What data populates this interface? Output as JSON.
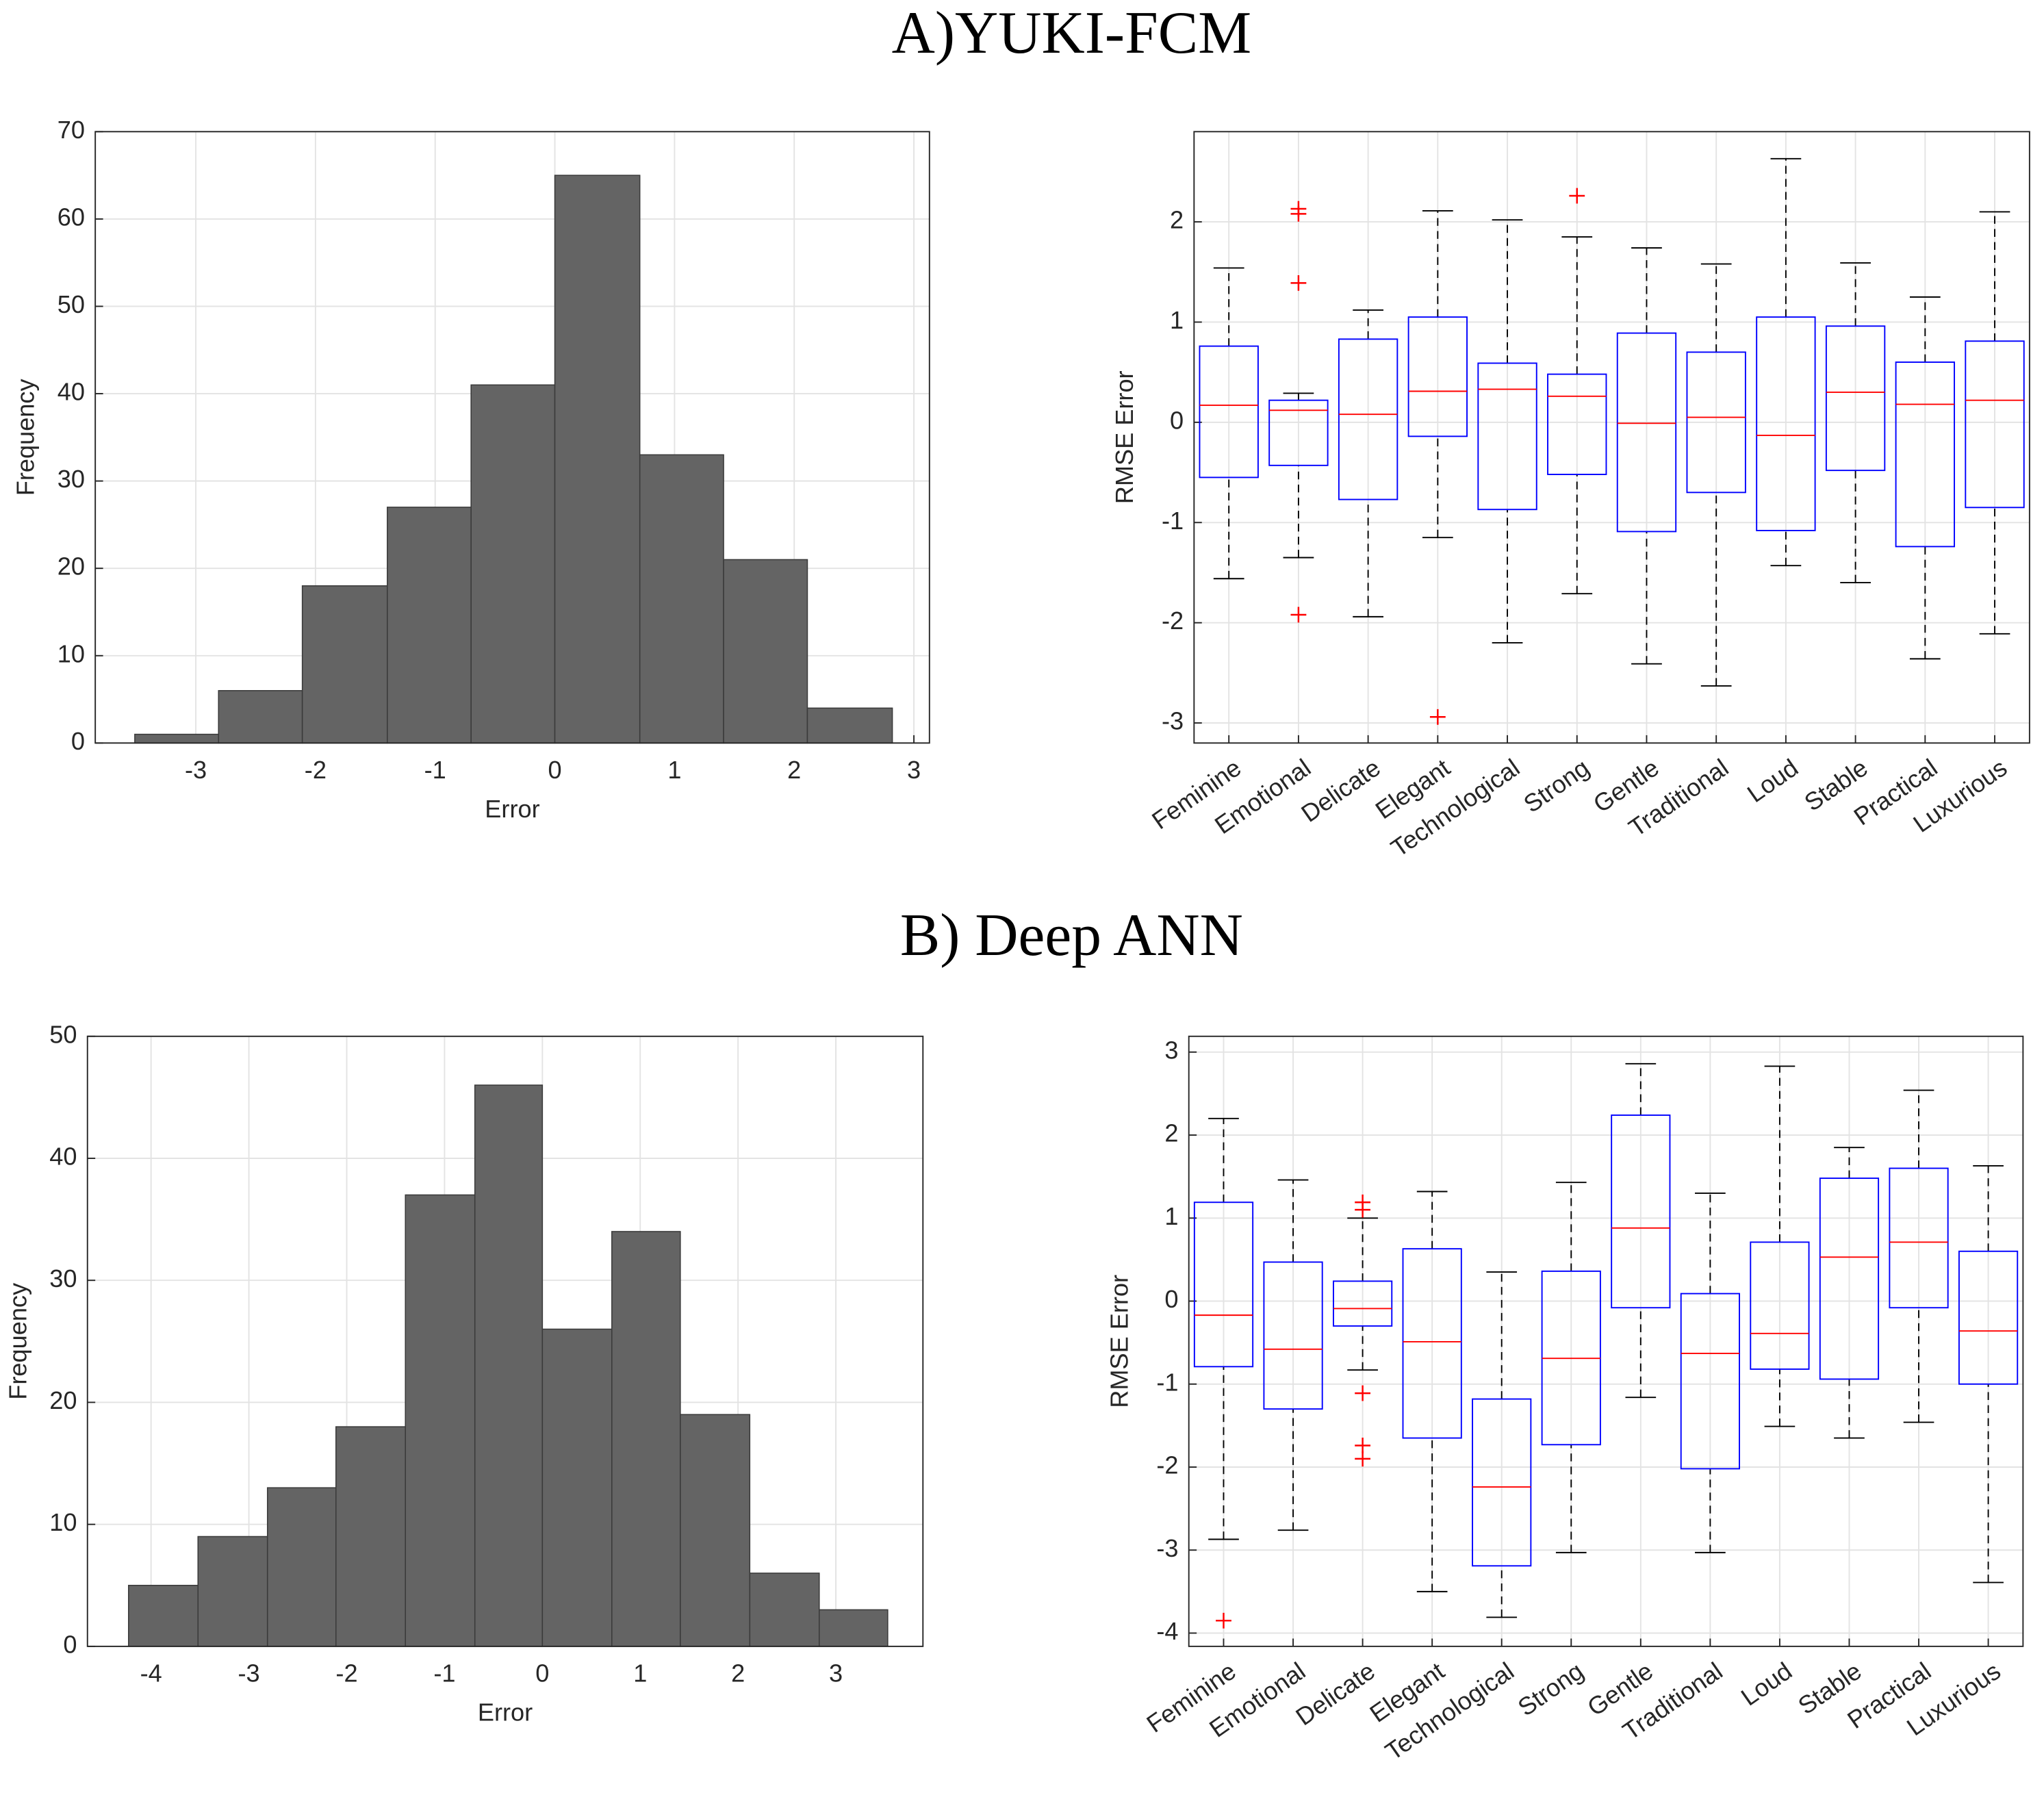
{
  "headings": [
    "A)YUKI-FCM",
    "B) Deep ANN"
  ],
  "chart_data": [
    {
      "type": "histogram",
      "x_label": "Error",
      "y_label": "Frequency",
      "color": "#646464",
      "grid": true,
      "bins": [
        -3.51,
        -2.81,
        -2.11,
        -1.4,
        -0.7,
        0.0,
        0.71,
        1.41,
        2.11,
        2.82
      ],
      "values": [
        1,
        6,
        18,
        27,
        41,
        65,
        33,
        21,
        4
      ],
      "xlim": [
        -3.84,
        3.13
      ],
      "xticks": [
        -3,
        -2,
        -1,
        0,
        1,
        2,
        3
      ],
      "ylim": [
        0,
        70
      ],
      "yticks": [
        0,
        10,
        20,
        30,
        40,
        50,
        60,
        70
      ]
    },
    {
      "type": "box",
      "y_label": "RMSE Error",
      "box_color": "#0000ff",
      "median_color": "#ff0000",
      "whisker_color": "#000000",
      "outlier_color": "#ff0000",
      "grid": true,
      "categories": [
        "Feminine",
        "Emotional",
        "Delicate",
        "Elegant",
        "Technological",
        "Strong",
        "Gentle",
        "Traditional",
        "Loud",
        "Stable",
        "Practical",
        "Luxurious"
      ],
      "boxes": [
        {
          "low": -1.56,
          "q1": -0.55,
          "median": 0.17,
          "q3": 0.76,
          "high": 1.54,
          "outliers": []
        },
        {
          "low": -1.35,
          "q1": -0.43,
          "median": 0.12,
          "q3": 0.22,
          "high": 0.29,
          "outliers": [
            2.13,
            2.08,
            1.39,
            -1.92
          ]
        },
        {
          "low": -1.94,
          "q1": -0.77,
          "median": 0.08,
          "q3": 0.83,
          "high": 1.12,
          "outliers": []
        },
        {
          "low": -1.15,
          "q1": -0.14,
          "median": 0.31,
          "q3": 1.05,
          "high": 2.11,
          "outliers": [
            -2.94
          ]
        },
        {
          "low": -2.2,
          "q1": -0.87,
          "median": 0.33,
          "q3": 0.59,
          "high": 2.02,
          "outliers": []
        },
        {
          "low": -1.71,
          "q1": -0.52,
          "median": 0.26,
          "q3": 0.48,
          "high": 1.85,
          "outliers": [
            2.26
          ]
        },
        {
          "low": -2.41,
          "q1": -1.09,
          "median": -0.01,
          "q3": 0.89,
          "high": 1.74,
          "outliers": []
        },
        {
          "low": -2.63,
          "q1": -0.7,
          "median": 0.05,
          "q3": 0.7,
          "high": 1.58,
          "outliers": []
        },
        {
          "low": -1.43,
          "q1": -1.08,
          "median": -0.13,
          "q3": 1.05,
          "high": 2.63,
          "outliers": []
        },
        {
          "low": -1.6,
          "q1": -0.48,
          "median": 0.3,
          "q3": 0.96,
          "high": 1.59,
          "outliers": []
        },
        {
          "low": -2.36,
          "q1": -1.24,
          "median": 0.18,
          "q3": 0.6,
          "high": 1.25,
          "outliers": []
        },
        {
          "low": -2.11,
          "q1": -0.85,
          "median": 0.22,
          "q3": 0.81,
          "high": 2.1,
          "outliers": []
        }
      ],
      "ylim": [
        -3.2,
        2.9
      ],
      "yticks": [
        -3,
        -2,
        -1,
        0,
        1,
        2
      ]
    },
    {
      "type": "histogram",
      "x_label": "Error",
      "y_label": "Frequency",
      "color": "#646464",
      "grid": true,
      "bins": [
        -4.23,
        -3.52,
        -2.81,
        -2.11,
        -1.4,
        -0.69,
        0.0,
        0.71,
        1.41,
        2.12,
        2.83,
        3.53
      ],
      "values": [
        5,
        9,
        13,
        18,
        37,
        46,
        26,
        34,
        19,
        6,
        3
      ],
      "xlim": [
        -4.65,
        3.89
      ],
      "xticks": [
        -4,
        -3,
        -2,
        -1,
        0,
        1,
        2,
        3
      ],
      "ylim": [
        0,
        50
      ],
      "yticks": [
        0,
        10,
        20,
        30,
        40,
        50
      ]
    },
    {
      "type": "box",
      "y_label": "RMSE Error",
      "box_color": "#0000ff",
      "median_color": "#ff0000",
      "whisker_color": "#000000",
      "outlier_color": "#ff0000",
      "grid": true,
      "categories": [
        "Feminine",
        "Emotional",
        "Delicate",
        "Elegant",
        "Technological",
        "Strong",
        "Gentle",
        "Traditional",
        "Loud",
        "Stable",
        "Practical",
        "Luxurious"
      ],
      "boxes": [
        {
          "low": -2.87,
          "q1": -0.79,
          "median": -0.17,
          "q3": 1.19,
          "high": 2.2,
          "outliers": [
            -3.85
          ]
        },
        {
          "low": -2.76,
          "q1": -1.3,
          "median": -0.58,
          "q3": 0.47,
          "high": 1.46,
          "outliers": []
        },
        {
          "low": -0.83,
          "q1": -0.3,
          "median": -0.09,
          "q3": 0.24,
          "high": 1.0,
          "outliers": [
            1.19,
            1.1,
            -1.11,
            -1.74,
            -1.9
          ]
        },
        {
          "low": -3.5,
          "q1": -1.65,
          "median": -0.49,
          "q3": 0.63,
          "high": 1.32,
          "outliers": []
        },
        {
          "low": -3.81,
          "q1": -3.19,
          "median": -2.24,
          "q3": -1.18,
          "high": 0.35,
          "outliers": []
        },
        {
          "low": -3.03,
          "q1": -1.73,
          "median": -0.69,
          "q3": 0.36,
          "high": 1.43,
          "outliers": []
        },
        {
          "low": -1.16,
          "q1": -0.08,
          "median": 0.88,
          "q3": 2.24,
          "high": 2.86,
          "outliers": []
        },
        {
          "low": -3.03,
          "q1": -2.02,
          "median": -0.63,
          "q3": 0.09,
          "high": 1.3,
          "outliers": []
        },
        {
          "low": -1.51,
          "q1": -0.82,
          "median": -0.39,
          "q3": 0.71,
          "high": 2.83,
          "outliers": []
        },
        {
          "low": -1.65,
          "q1": -0.94,
          "median": 0.53,
          "q3": 1.48,
          "high": 1.85,
          "outliers": []
        },
        {
          "low": -1.46,
          "q1": -0.08,
          "median": 0.71,
          "q3": 1.6,
          "high": 2.54,
          "outliers": []
        },
        {
          "low": -3.39,
          "q1": -1.0,
          "median": -0.36,
          "q3": 0.6,
          "high": 1.63,
          "outliers": []
        }
      ],
      "ylim": [
        -4.16,
        3.19
      ],
      "yticks": [
        -4,
        -3,
        -2,
        -1,
        0,
        1,
        2,
        3
      ]
    }
  ]
}
